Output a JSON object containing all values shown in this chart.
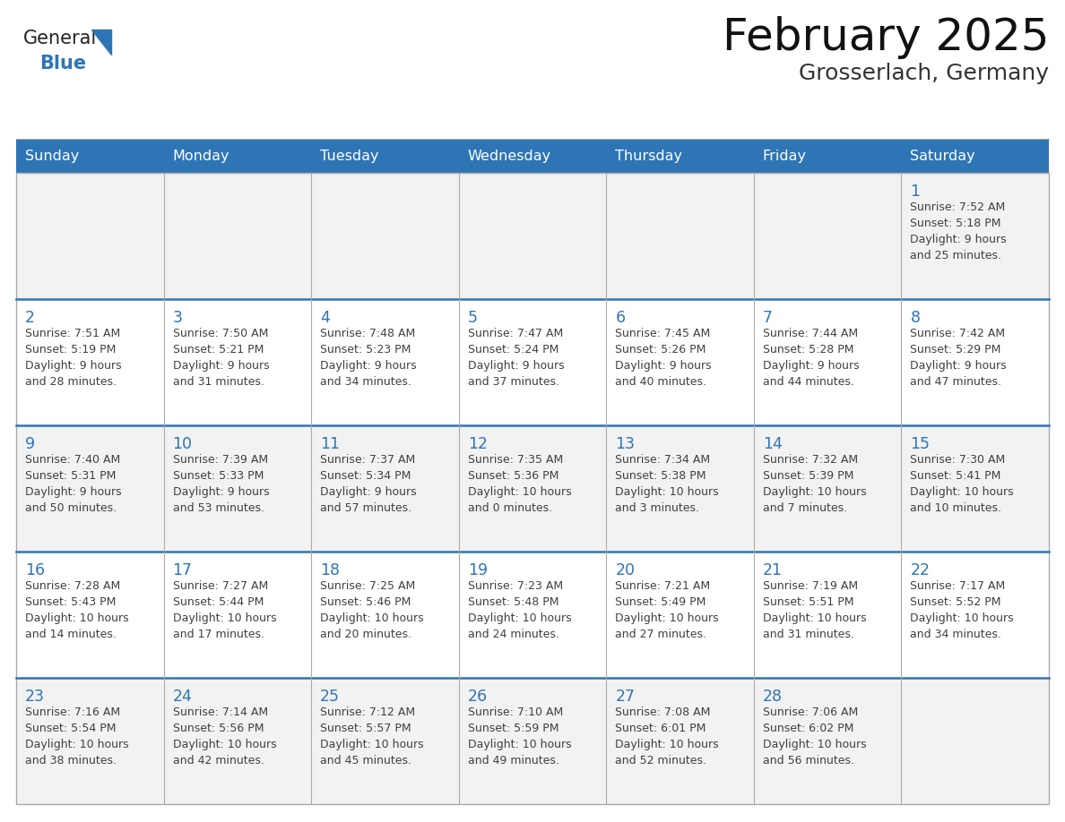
{
  "title": "February 2025",
  "subtitle": "Grosserlach, Germany",
  "days_of_week": [
    "Sunday",
    "Monday",
    "Tuesday",
    "Wednesday",
    "Thursday",
    "Friday",
    "Saturday"
  ],
  "header_bg": "#2E75B6",
  "header_text": "#FFFFFF",
  "cell_bg_white": "#FFFFFF",
  "cell_bg_gray": "#F2F2F2",
  "row_separator_color": "#2E75B6",
  "col_separator_color": "#AAAAAA",
  "outer_border_color": "#AAAAAA",
  "day_num_color": "#2E75B6",
  "info_color": "#404040",
  "title_color": "#111111",
  "subtitle_color": "#333333",
  "logo_general_color": "#222222",
  "logo_blue_color": "#2E75B6",
  "weeks": [
    [
      {
        "day": null,
        "info": ""
      },
      {
        "day": null,
        "info": ""
      },
      {
        "day": null,
        "info": ""
      },
      {
        "day": null,
        "info": ""
      },
      {
        "day": null,
        "info": ""
      },
      {
        "day": null,
        "info": ""
      },
      {
        "day": 1,
        "info": "Sunrise: 7:52 AM\nSunset: 5:18 PM\nDaylight: 9 hours\nand 25 minutes."
      }
    ],
    [
      {
        "day": 2,
        "info": "Sunrise: 7:51 AM\nSunset: 5:19 PM\nDaylight: 9 hours\nand 28 minutes."
      },
      {
        "day": 3,
        "info": "Sunrise: 7:50 AM\nSunset: 5:21 PM\nDaylight: 9 hours\nand 31 minutes."
      },
      {
        "day": 4,
        "info": "Sunrise: 7:48 AM\nSunset: 5:23 PM\nDaylight: 9 hours\nand 34 minutes."
      },
      {
        "day": 5,
        "info": "Sunrise: 7:47 AM\nSunset: 5:24 PM\nDaylight: 9 hours\nand 37 minutes."
      },
      {
        "day": 6,
        "info": "Sunrise: 7:45 AM\nSunset: 5:26 PM\nDaylight: 9 hours\nand 40 minutes."
      },
      {
        "day": 7,
        "info": "Sunrise: 7:44 AM\nSunset: 5:28 PM\nDaylight: 9 hours\nand 44 minutes."
      },
      {
        "day": 8,
        "info": "Sunrise: 7:42 AM\nSunset: 5:29 PM\nDaylight: 9 hours\nand 47 minutes."
      }
    ],
    [
      {
        "day": 9,
        "info": "Sunrise: 7:40 AM\nSunset: 5:31 PM\nDaylight: 9 hours\nand 50 minutes."
      },
      {
        "day": 10,
        "info": "Sunrise: 7:39 AM\nSunset: 5:33 PM\nDaylight: 9 hours\nand 53 minutes."
      },
      {
        "day": 11,
        "info": "Sunrise: 7:37 AM\nSunset: 5:34 PM\nDaylight: 9 hours\nand 57 minutes."
      },
      {
        "day": 12,
        "info": "Sunrise: 7:35 AM\nSunset: 5:36 PM\nDaylight: 10 hours\nand 0 minutes."
      },
      {
        "day": 13,
        "info": "Sunrise: 7:34 AM\nSunset: 5:38 PM\nDaylight: 10 hours\nand 3 minutes."
      },
      {
        "day": 14,
        "info": "Sunrise: 7:32 AM\nSunset: 5:39 PM\nDaylight: 10 hours\nand 7 minutes."
      },
      {
        "day": 15,
        "info": "Sunrise: 7:30 AM\nSunset: 5:41 PM\nDaylight: 10 hours\nand 10 minutes."
      }
    ],
    [
      {
        "day": 16,
        "info": "Sunrise: 7:28 AM\nSunset: 5:43 PM\nDaylight: 10 hours\nand 14 minutes."
      },
      {
        "day": 17,
        "info": "Sunrise: 7:27 AM\nSunset: 5:44 PM\nDaylight: 10 hours\nand 17 minutes."
      },
      {
        "day": 18,
        "info": "Sunrise: 7:25 AM\nSunset: 5:46 PM\nDaylight: 10 hours\nand 20 minutes."
      },
      {
        "day": 19,
        "info": "Sunrise: 7:23 AM\nSunset: 5:48 PM\nDaylight: 10 hours\nand 24 minutes."
      },
      {
        "day": 20,
        "info": "Sunrise: 7:21 AM\nSunset: 5:49 PM\nDaylight: 10 hours\nand 27 minutes."
      },
      {
        "day": 21,
        "info": "Sunrise: 7:19 AM\nSunset: 5:51 PM\nDaylight: 10 hours\nand 31 minutes."
      },
      {
        "day": 22,
        "info": "Sunrise: 7:17 AM\nSunset: 5:52 PM\nDaylight: 10 hours\nand 34 minutes."
      }
    ],
    [
      {
        "day": 23,
        "info": "Sunrise: 7:16 AM\nSunset: 5:54 PM\nDaylight: 10 hours\nand 38 minutes."
      },
      {
        "day": 24,
        "info": "Sunrise: 7:14 AM\nSunset: 5:56 PM\nDaylight: 10 hours\nand 42 minutes."
      },
      {
        "day": 25,
        "info": "Sunrise: 7:12 AM\nSunset: 5:57 PM\nDaylight: 10 hours\nand 45 minutes."
      },
      {
        "day": 26,
        "info": "Sunrise: 7:10 AM\nSunset: 5:59 PM\nDaylight: 10 hours\nand 49 minutes."
      },
      {
        "day": 27,
        "info": "Sunrise: 7:08 AM\nSunset: 6:01 PM\nDaylight: 10 hours\nand 52 minutes."
      },
      {
        "day": 28,
        "info": "Sunrise: 7:06 AM\nSunset: 6:02 PM\nDaylight: 10 hours\nand 56 minutes."
      },
      {
        "day": null,
        "info": ""
      }
    ]
  ]
}
